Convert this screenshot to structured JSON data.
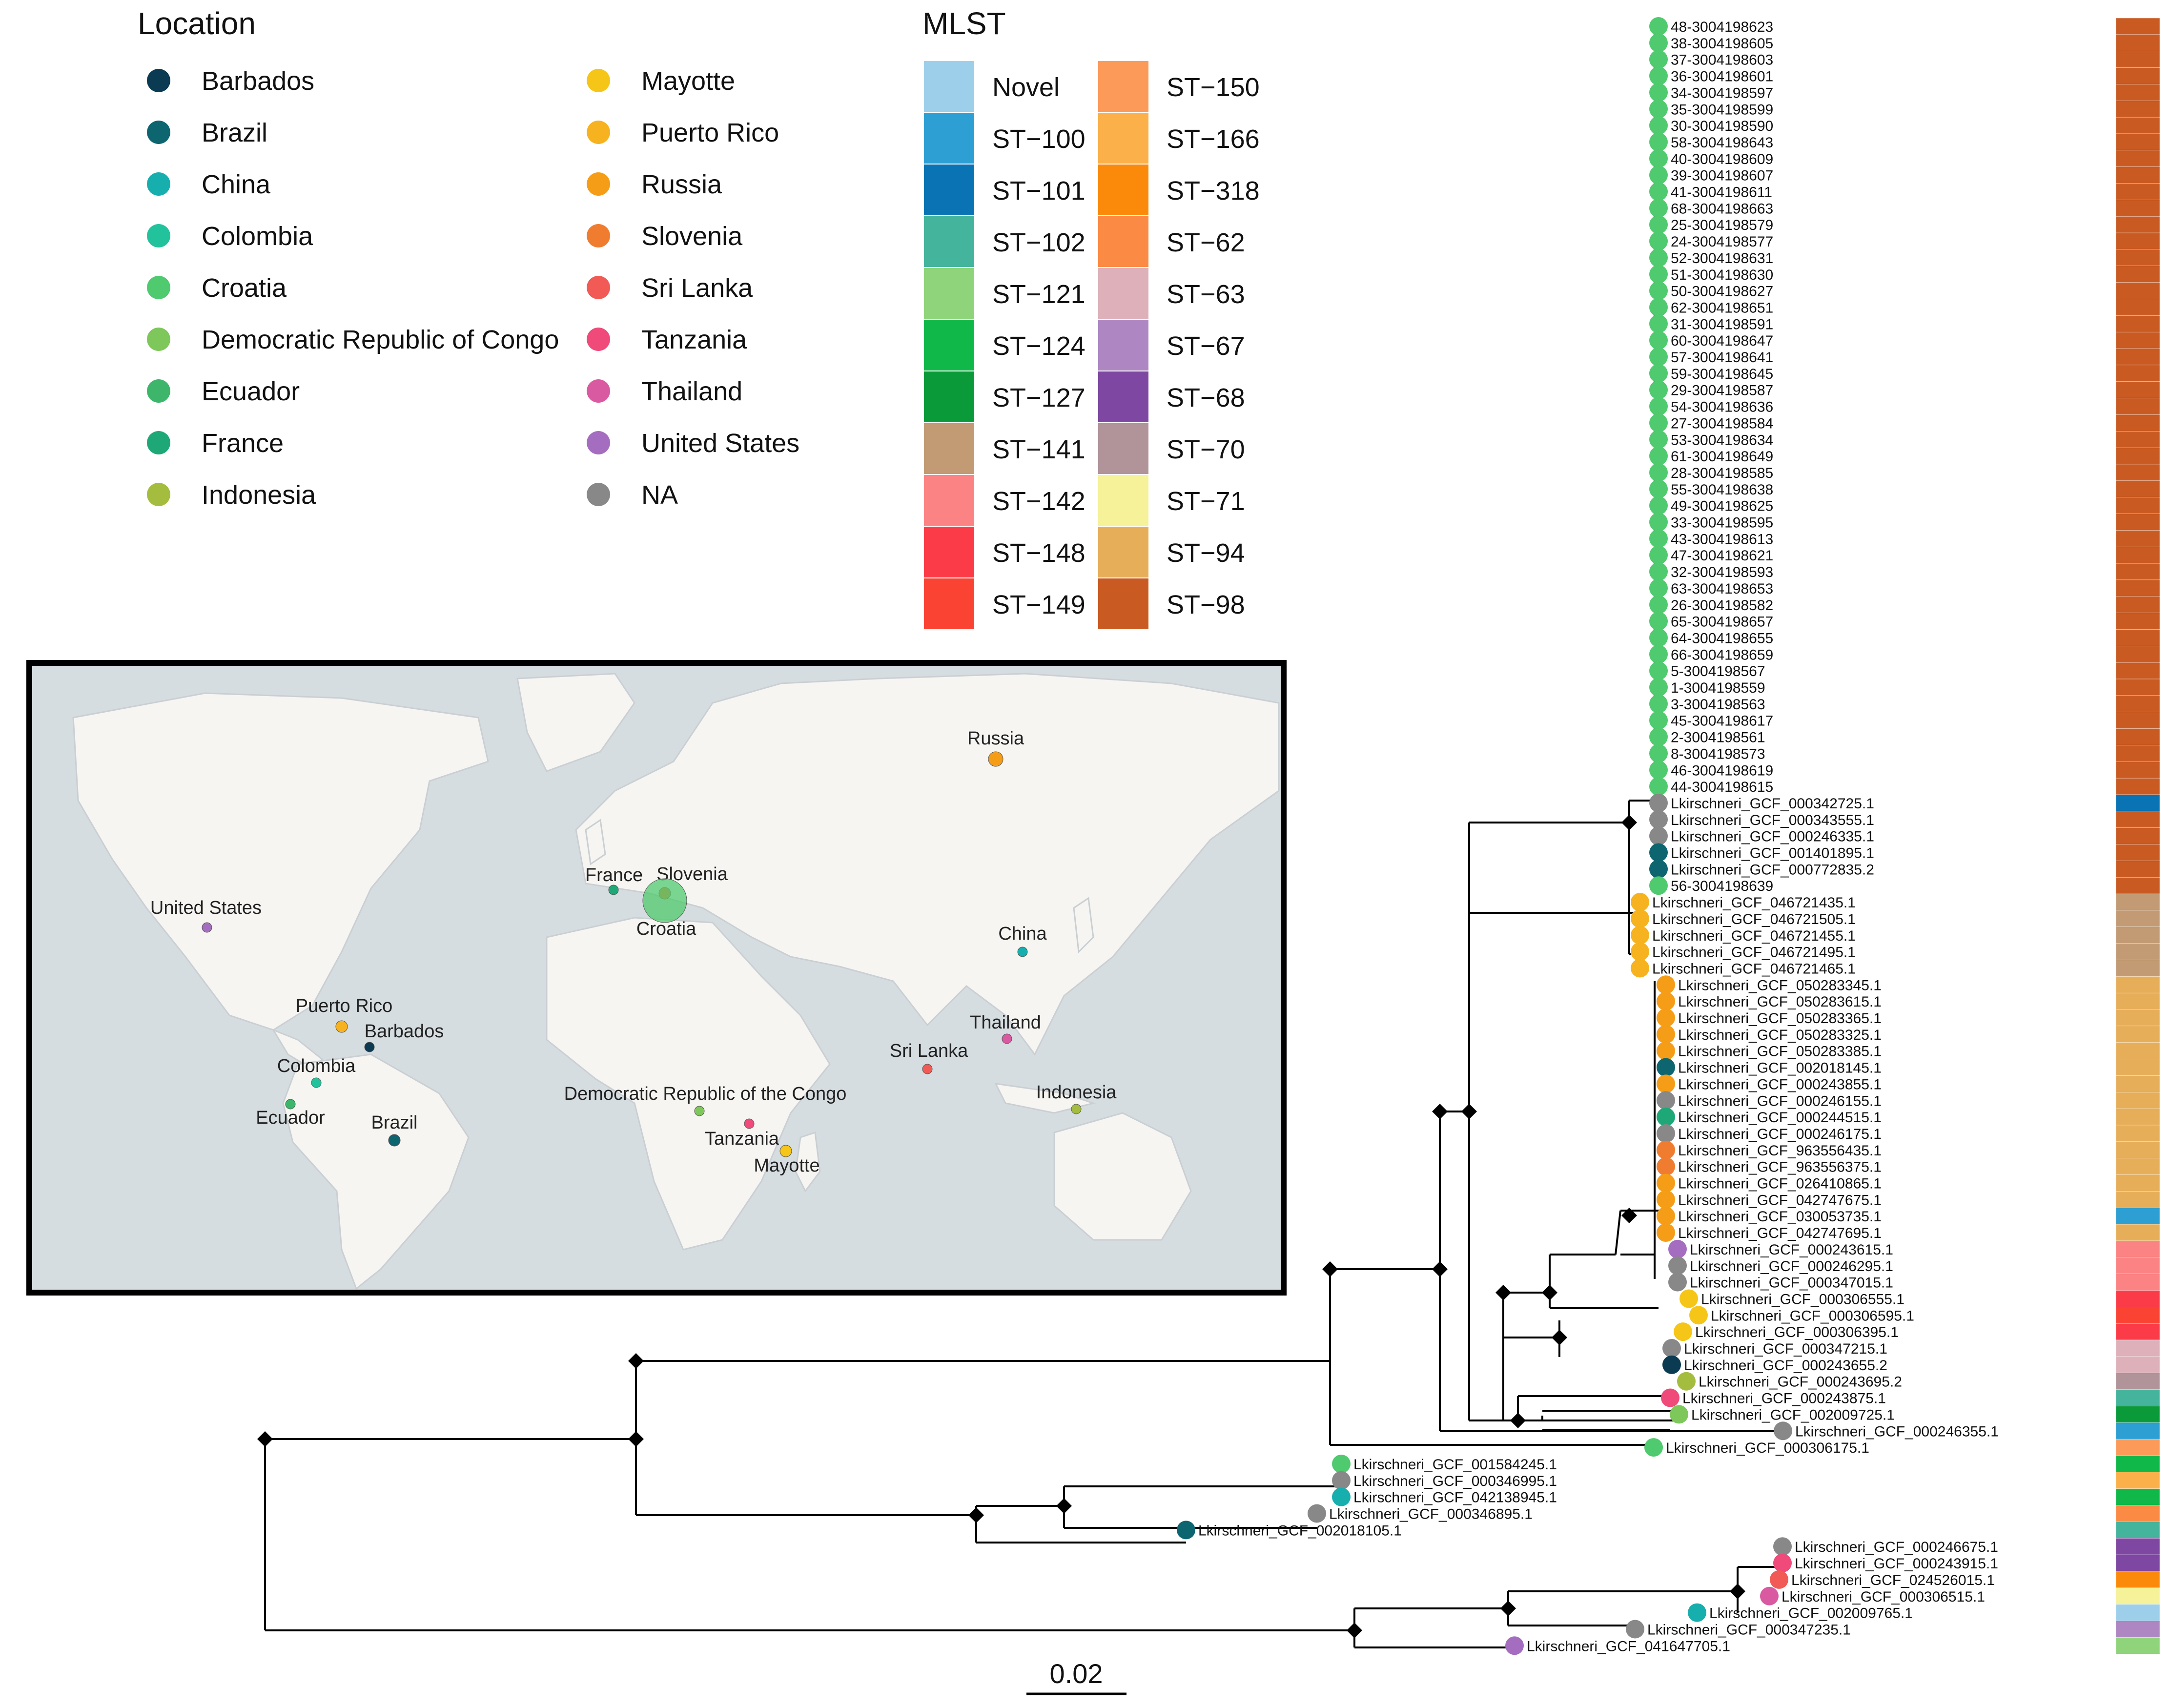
{
  "location_legend": {
    "title": "Location",
    "items": [
      {
        "name": "Barbados",
        "color": "#0b3a53"
      },
      {
        "name": "Brazil",
        "color": "#0d6570"
      },
      {
        "name": "China",
        "color": "#17aeae"
      },
      {
        "name": "Colombia",
        "color": "#22c39c"
      },
      {
        "name": "Croatia",
        "color": "#4fca6e"
      },
      {
        "name": "Democratic Republic of Congo",
        "color": "#7ec75a"
      },
      {
        "name": "Ecuador",
        "color": "#3db56a"
      },
      {
        "name": "France",
        "color": "#1ea878"
      },
      {
        "name": "Indonesia",
        "color": "#a4bd3e"
      },
      {
        "name": "Mayotte",
        "color": "#f5c518"
      },
      {
        "name": "Puerto Rico",
        "color": "#f6b21f"
      },
      {
        "name": "Russia",
        "color": "#f59d17"
      },
      {
        "name": "Slovenia",
        "color": "#f07c30"
      },
      {
        "name": "Sri Lanka",
        "color": "#f25a55"
      },
      {
        "name": "Tanzania",
        "color": "#ef4a7a"
      },
      {
        "name": "Thailand",
        "color": "#d95aa0"
      },
      {
        "name": "United States",
        "color": "#a56dc0"
      },
      {
        "name": "NA",
        "color": "#888888"
      }
    ]
  },
  "mlst_legend": {
    "title": "MLST",
    "items": [
      {
        "name": "Novel",
        "color": "#9ecfea"
      },
      {
        "name": "ST−100",
        "color": "#2d9fd3"
      },
      {
        "name": "ST−101",
        "color": "#0a73b4"
      },
      {
        "name": "ST−102",
        "color": "#44b49c"
      },
      {
        "name": "ST−121",
        "color": "#8fd47a"
      },
      {
        "name": "ST−124",
        "color": "#10b84a"
      },
      {
        "name": "ST−127",
        "color": "#0a9a3a"
      },
      {
        "name": "ST−141",
        "color": "#c29b74"
      },
      {
        "name": "ST−142",
        "color": "#fc8383"
      },
      {
        "name": "ST−148",
        "color": "#fb3b47"
      },
      {
        "name": "ST−149",
        "color": "#fb4334"
      },
      {
        "name": "ST−150",
        "color": "#fc9a5a"
      },
      {
        "name": "ST−166",
        "color": "#fbb04a"
      },
      {
        "name": "ST−318",
        "color": "#fb8a0a"
      },
      {
        "name": "ST−62",
        "color": "#fb8a44"
      },
      {
        "name": "ST−63",
        "color": "#deb1ba"
      },
      {
        "name": "ST−67",
        "color": "#ad86c2"
      },
      {
        "name": "ST−68",
        "color": "#7e47a2"
      },
      {
        "name": "ST−70",
        "color": "#b0949a"
      },
      {
        "name": "ST−71",
        "color": "#f5f29a"
      },
      {
        "name": "ST−94",
        "color": "#e7ae5a"
      },
      {
        "name": "ST−98",
        "color": "#c95a22"
      }
    ]
  },
  "map_labels": {
    "russia": "Russia",
    "france": "France",
    "slovenia": "Slovenia",
    "croatia": "Croatia",
    "united_states": "United States",
    "china": "China",
    "puerto_rico": "Puerto Rico",
    "barbados": "Barbados",
    "thailand": "Thailand",
    "colombia": "Colombia",
    "sri_lanka": "Sri Lanka",
    "ecuador": "Ecuador",
    "brazil": "Brazil",
    "drc": "Democratic Republic of the Congo",
    "indonesia": "Indonesia",
    "tanzania": "Tanzania",
    "mayotte": "Mayotte"
  },
  "tips": [
    {
      "label": "48-3004198623",
      "loc": "Croatia",
      "st": "ST−98"
    },
    {
      "label": "38-3004198605",
      "loc": "Croatia",
      "st": "ST−98"
    },
    {
      "label": "37-3004198603",
      "loc": "Croatia",
      "st": "ST−98"
    },
    {
      "label": "36-3004198601",
      "loc": "Croatia",
      "st": "ST−98"
    },
    {
      "label": "34-3004198597",
      "loc": "Croatia",
      "st": "ST−98"
    },
    {
      "label": "35-3004198599",
      "loc": "Croatia",
      "st": "ST−98"
    },
    {
      "label": "30-3004198590",
      "loc": "Croatia",
      "st": "ST−98"
    },
    {
      "label": "58-3004198643",
      "loc": "Croatia",
      "st": "ST−98"
    },
    {
      "label": "40-3004198609",
      "loc": "Croatia",
      "st": "ST−98"
    },
    {
      "label": "39-3004198607",
      "loc": "Croatia",
      "st": "ST−98"
    },
    {
      "label": "41-3004198611",
      "loc": "Croatia",
      "st": "ST−98"
    },
    {
      "label": "68-3004198663",
      "loc": "Croatia",
      "st": "ST−98"
    },
    {
      "label": "25-3004198579",
      "loc": "Croatia",
      "st": "ST−98"
    },
    {
      "label": "24-3004198577",
      "loc": "Croatia",
      "st": "ST−98"
    },
    {
      "label": "52-3004198631",
      "loc": "Croatia",
      "st": "ST−98"
    },
    {
      "label": "51-3004198630",
      "loc": "Croatia",
      "st": "ST−98"
    },
    {
      "label": "50-3004198627",
      "loc": "Croatia",
      "st": "ST−98"
    },
    {
      "label": "62-3004198651",
      "loc": "Croatia",
      "st": "ST−98"
    },
    {
      "label": "31-3004198591",
      "loc": "Croatia",
      "st": "ST−98"
    },
    {
      "label": "60-3004198647",
      "loc": "Croatia",
      "st": "ST−98"
    },
    {
      "label": "57-3004198641",
      "loc": "Croatia",
      "st": "ST−98"
    },
    {
      "label": "59-3004198645",
      "loc": "Croatia",
      "st": "ST−98"
    },
    {
      "label": "29-3004198587",
      "loc": "Croatia",
      "st": "ST−98"
    },
    {
      "label": "54-3004198636",
      "loc": "Croatia",
      "st": "ST−98"
    },
    {
      "label": "27-3004198584",
      "loc": "Croatia",
      "st": "ST−98"
    },
    {
      "label": "53-3004198634",
      "loc": "Croatia",
      "st": "ST−98"
    },
    {
      "label": "61-3004198649",
      "loc": "Croatia",
      "st": "ST−98"
    },
    {
      "label": "28-3004198585",
      "loc": "Croatia",
      "st": "ST−98"
    },
    {
      "label": "55-3004198638",
      "loc": "Croatia",
      "st": "ST−98"
    },
    {
      "label": "49-3004198625",
      "loc": "Croatia",
      "st": "ST−98"
    },
    {
      "label": "33-3004198595",
      "loc": "Croatia",
      "st": "ST−98"
    },
    {
      "label": "43-3004198613",
      "loc": "Croatia",
      "st": "ST−98"
    },
    {
      "label": "47-3004198621",
      "loc": "Croatia",
      "st": "ST−98"
    },
    {
      "label": "32-3004198593",
      "loc": "Croatia",
      "st": "ST−98"
    },
    {
      "label": "63-3004198653",
      "loc": "Croatia",
      "st": "ST−98"
    },
    {
      "label": "26-3004198582",
      "loc": "Croatia",
      "st": "ST−98"
    },
    {
      "label": "65-3004198657",
      "loc": "Croatia",
      "st": "ST−98"
    },
    {
      "label": "64-3004198655",
      "loc": "Croatia",
      "st": "ST−98"
    },
    {
      "label": "66-3004198659",
      "loc": "Croatia",
      "st": "ST−98"
    },
    {
      "label": "5-3004198567",
      "loc": "Croatia",
      "st": "ST−98"
    },
    {
      "label": "1-3004198559",
      "loc": "Croatia",
      "st": "ST−98"
    },
    {
      "label": "3-3004198563",
      "loc": "Croatia",
      "st": "ST−98"
    },
    {
      "label": "45-3004198617",
      "loc": "Croatia",
      "st": "ST−98"
    },
    {
      "label": "2-3004198561",
      "loc": "Croatia",
      "st": "ST−98"
    },
    {
      "label": "8-3004198573",
      "loc": "Croatia",
      "st": "ST−98"
    },
    {
      "label": "46-3004198619",
      "loc": "Croatia",
      "st": "ST−98"
    },
    {
      "label": "44-3004198615",
      "loc": "Croatia",
      "st": "ST−98"
    },
    {
      "label": "Lkirschneri_GCF_000342725.1",
      "loc": "NA",
      "st": "ST−101"
    },
    {
      "label": "Lkirschneri_GCF_000343555.1",
      "loc": "NA",
      "st": "ST−98"
    },
    {
      "label": "Lkirschneri_GCF_000246335.1",
      "loc": "NA",
      "st": "ST−98"
    },
    {
      "label": "Lkirschneri_GCF_001401895.1",
      "loc": "Brazil",
      "st": "ST−98"
    },
    {
      "label": "Lkirschneri_GCF_000772835.2",
      "loc": "Brazil",
      "st": "ST−98"
    },
    {
      "label": "56-3004198639",
      "loc": "Croatia",
      "st": "ST−98"
    },
    {
      "label": "Lkirschneri_GCF_046721435.1",
      "loc": "Puerto Rico",
      "st": "ST−141"
    },
    {
      "label": "Lkirschneri_GCF_046721505.1",
      "loc": "Puerto Rico",
      "st": "ST−141"
    },
    {
      "label": "Lkirschneri_GCF_046721455.1",
      "loc": "Puerto Rico",
      "st": "ST−141"
    },
    {
      "label": "Lkirschneri_GCF_046721495.1",
      "loc": "Puerto Rico",
      "st": "ST−141"
    },
    {
      "label": "Lkirschneri_GCF_046721465.1",
      "loc": "Puerto Rico",
      "st": "ST−141"
    },
    {
      "label": "Lkirschneri_GCF_050283345.1",
      "loc": "Russia",
      "st": "ST−94"
    },
    {
      "label": "Lkirschneri_GCF_050283615.1",
      "loc": "Russia",
      "st": "ST−94"
    },
    {
      "label": "Lkirschneri_GCF_050283365.1",
      "loc": "Russia",
      "st": "ST−94"
    },
    {
      "label": "Lkirschneri_GCF_050283325.1",
      "loc": "Russia",
      "st": "ST−94"
    },
    {
      "label": "Lkirschneri_GCF_050283385.1",
      "loc": "Russia",
      "st": "ST−94"
    },
    {
      "label": "Lkirschneri_GCF_002018145.1",
      "loc": "Brazil",
      "st": "ST−94"
    },
    {
      "label": "Lkirschneri_GCF_000243855.1",
      "loc": "Russia",
      "st": "ST−94"
    },
    {
      "label": "Lkirschneri_GCF_000246155.1",
      "loc": "NA",
      "st": "ST−94"
    },
    {
      "label": "Lkirschneri_GCF_000244515.1",
      "loc": "France",
      "st": "ST−94"
    },
    {
      "label": "Lkirschneri_GCF_000246175.1",
      "loc": "NA",
      "st": "ST−94"
    },
    {
      "label": "Lkirschneri_GCF_963556435.1",
      "loc": "Slovenia",
      "st": "ST−94"
    },
    {
      "label": "Lkirschneri_GCF_963556375.1",
      "loc": "Slovenia",
      "st": "ST−94"
    },
    {
      "label": "Lkirschneri_GCF_026410865.1",
      "loc": "Russia",
      "st": "ST−94"
    },
    {
      "label": "Lkirschneri_GCF_042747675.1",
      "loc": "Russia",
      "st": "ST−94"
    },
    {
      "label": "Lkirschneri_GCF_030053735.1",
      "loc": "Russia",
      "st": "ST−100"
    },
    {
      "label": "Lkirschneri_GCF_042747695.1",
      "loc": "Russia",
      "st": "ST−94"
    },
    {
      "label": "Lkirschneri_GCF_000243615.1",
      "loc": "United States",
      "st": "ST−142"
    },
    {
      "label": "Lkirschneri_GCF_000246295.1",
      "loc": "NA",
      "st": "ST−142"
    },
    {
      "label": "Lkirschneri_GCF_000347015.1",
      "loc": "NA",
      "st": "ST−142"
    },
    {
      "label": "Lkirschneri_GCF_000306555.1",
      "loc": "Mayotte",
      "st": "ST−148"
    },
    {
      "label": "Lkirschneri_GCF_000306595.1",
      "loc": "Mayotte",
      "st": "ST−149"
    },
    {
      "label": "Lkirschneri_GCF_000306395.1",
      "loc": "Mayotte",
      "st": "ST−148"
    },
    {
      "label": "Lkirschneri_GCF_000347215.1",
      "loc": "NA",
      "st": "ST−63"
    },
    {
      "label": "Lkirschneri_GCF_000243655.2",
      "loc": "Barbados",
      "st": "ST−63"
    },
    {
      "label": "Lkirschneri_GCF_000243695.2",
      "loc": "Indonesia",
      "st": "ST−70"
    },
    {
      "label": "Lkirschneri_GCF_000243875.1",
      "loc": "Tanzania",
      "st": "ST−102"
    },
    {
      "label": "Lkirschneri_GCF_002009725.1",
      "loc": "Democratic Republic of Congo",
      "st": "ST−127"
    },
    {
      "label": "Lkirschneri_GCF_000246355.1",
      "loc": "NA",
      "st": "ST−100"
    },
    {
      "label": "Lkirschneri_GCF_000306175.1",
      "loc": "Croatia",
      "st": "ST−150"
    },
    {
      "label": "Lkirschneri_GCF_001584245.1",
      "loc": "Croatia",
      "st": "ST−124"
    },
    {
      "label": "Lkirschneri_GCF_000346995.1",
      "loc": "NA",
      "st": "ST−166"
    },
    {
      "label": "Lkirschneri_GCF_042138945.1",
      "loc": "China",
      "st": "ST−124"
    },
    {
      "label": "Lkirschneri_GCF_000346895.1",
      "loc": "NA",
      "st": "ST−62"
    },
    {
      "label": "Lkirschneri_GCF_002018105.1",
      "loc": "Brazil",
      "st": "ST−102"
    },
    {
      "label": "Lkirschneri_GCF_000246675.1",
      "loc": "NA",
      "st": "ST−68"
    },
    {
      "label": "Lkirschneri_GCF_000243915.1",
      "loc": "Tanzania",
      "st": "ST−68"
    },
    {
      "label": "Lkirschneri_GCF_024526015.1",
      "loc": "Sri Lanka",
      "st": "ST−318"
    },
    {
      "label": "Lkirschneri_GCF_000306515.1",
      "loc": "Thailand",
      "st": "ST−71"
    },
    {
      "label": "Lkirschneri_GCF_002009765.1",
      "loc": "China",
      "st": "Novel"
    },
    {
      "label": "Lkirschneri_GCF_000347235.1",
      "loc": "NA",
      "st": "ST−67"
    },
    {
      "label": "Lkirschneri_GCF_041647705.1",
      "loc": "United States",
      "st": "ST−121"
    }
  ],
  "scale_bar": {
    "label": "0.02",
    "length": 0.02
  }
}
